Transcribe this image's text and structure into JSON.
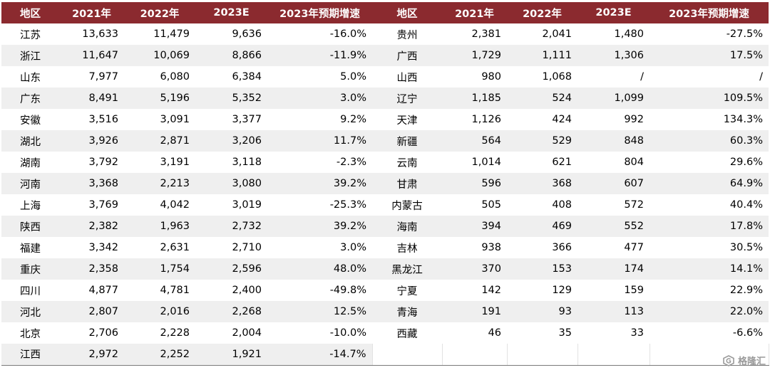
{
  "table": {
    "headers": [
      "地区",
      "2021年",
      "2022年",
      "2023E",
      "2023年预期增速",
      "地区",
      "2021年",
      "2022年",
      "2023E",
      "2023年预期增速"
    ],
    "rows": [
      [
        "江苏",
        "13,633",
        "11,479",
        "9,636",
        "-16.0%",
        "贵州",
        "2,381",
        "2,041",
        "1,480",
        "-27.5%"
      ],
      [
        "浙江",
        "11,647",
        "10,069",
        "8,866",
        "-11.9%",
        "广西",
        "1,729",
        "1,111",
        "1,306",
        "17.5%"
      ],
      [
        "山东",
        "7,977",
        "6,080",
        "6,384",
        "5.0%",
        "山西",
        "980",
        "1,068",
        "/",
        "/"
      ],
      [
        "广东",
        "8,491",
        "5,196",
        "5,352",
        "3.0%",
        "辽宁",
        "1,185",
        "524",
        "1,099",
        "109.5%"
      ],
      [
        "安徽",
        "3,516",
        "3,091",
        "3,377",
        "9.2%",
        "天津",
        "1,126",
        "424",
        "992",
        "134.3%"
      ],
      [
        "湖北",
        "3,926",
        "2,871",
        "3,206",
        "11.7%",
        "新疆",
        "564",
        "529",
        "848",
        "60.3%"
      ],
      [
        "湖南",
        "3,792",
        "3,191",
        "3,118",
        "-2.3%",
        "云南",
        "1,014",
        "621",
        "804",
        "29.6%"
      ],
      [
        "河南",
        "3,368",
        "2,213",
        "3,080",
        "39.2%",
        "甘肃",
        "596",
        "368",
        "607",
        "64.9%"
      ],
      [
        "上海",
        "3,769",
        "4,042",
        "3,019",
        "-25.3%",
        "内蒙古",
        "505",
        "408",
        "572",
        "40.4%"
      ],
      [
        "陕西",
        "2,382",
        "1,963",
        "2,732",
        "39.2%",
        "海南",
        "394",
        "469",
        "552",
        "17.8%"
      ],
      [
        "福建",
        "3,342",
        "2,631",
        "2,710",
        "3.0%",
        "吉林",
        "938",
        "366",
        "477",
        "30.5%"
      ],
      [
        "重庆",
        "2,358",
        "1,754",
        "2,596",
        "48.0%",
        "黑龙江",
        "370",
        "153",
        "174",
        "14.1%"
      ],
      [
        "四川",
        "4,877",
        "4,781",
        "2,400",
        "-49.8%",
        "宁夏",
        "142",
        "129",
        "159",
        "22.9%"
      ],
      [
        "河北",
        "2,807",
        "2,016",
        "2,268",
        "12.5%",
        "青海",
        "191",
        "93",
        "113",
        "22.0%"
      ],
      [
        "北京",
        "2,706",
        "2,228",
        "2,004",
        "-10.0%",
        "西藏",
        "46",
        "35",
        "33",
        "-6.6%"
      ],
      [
        "江西",
        "2,972",
        "2,252",
        "1,921",
        "-14.7%",
        "",
        "",
        "",
        "",
        ""
      ]
    ]
  },
  "watermark": {
    "text": "格隆汇",
    "icon": "gelonghui-logo-icon"
  },
  "colors": {
    "header_bg": "#8b2a2f",
    "stripe": "#efefef"
  }
}
